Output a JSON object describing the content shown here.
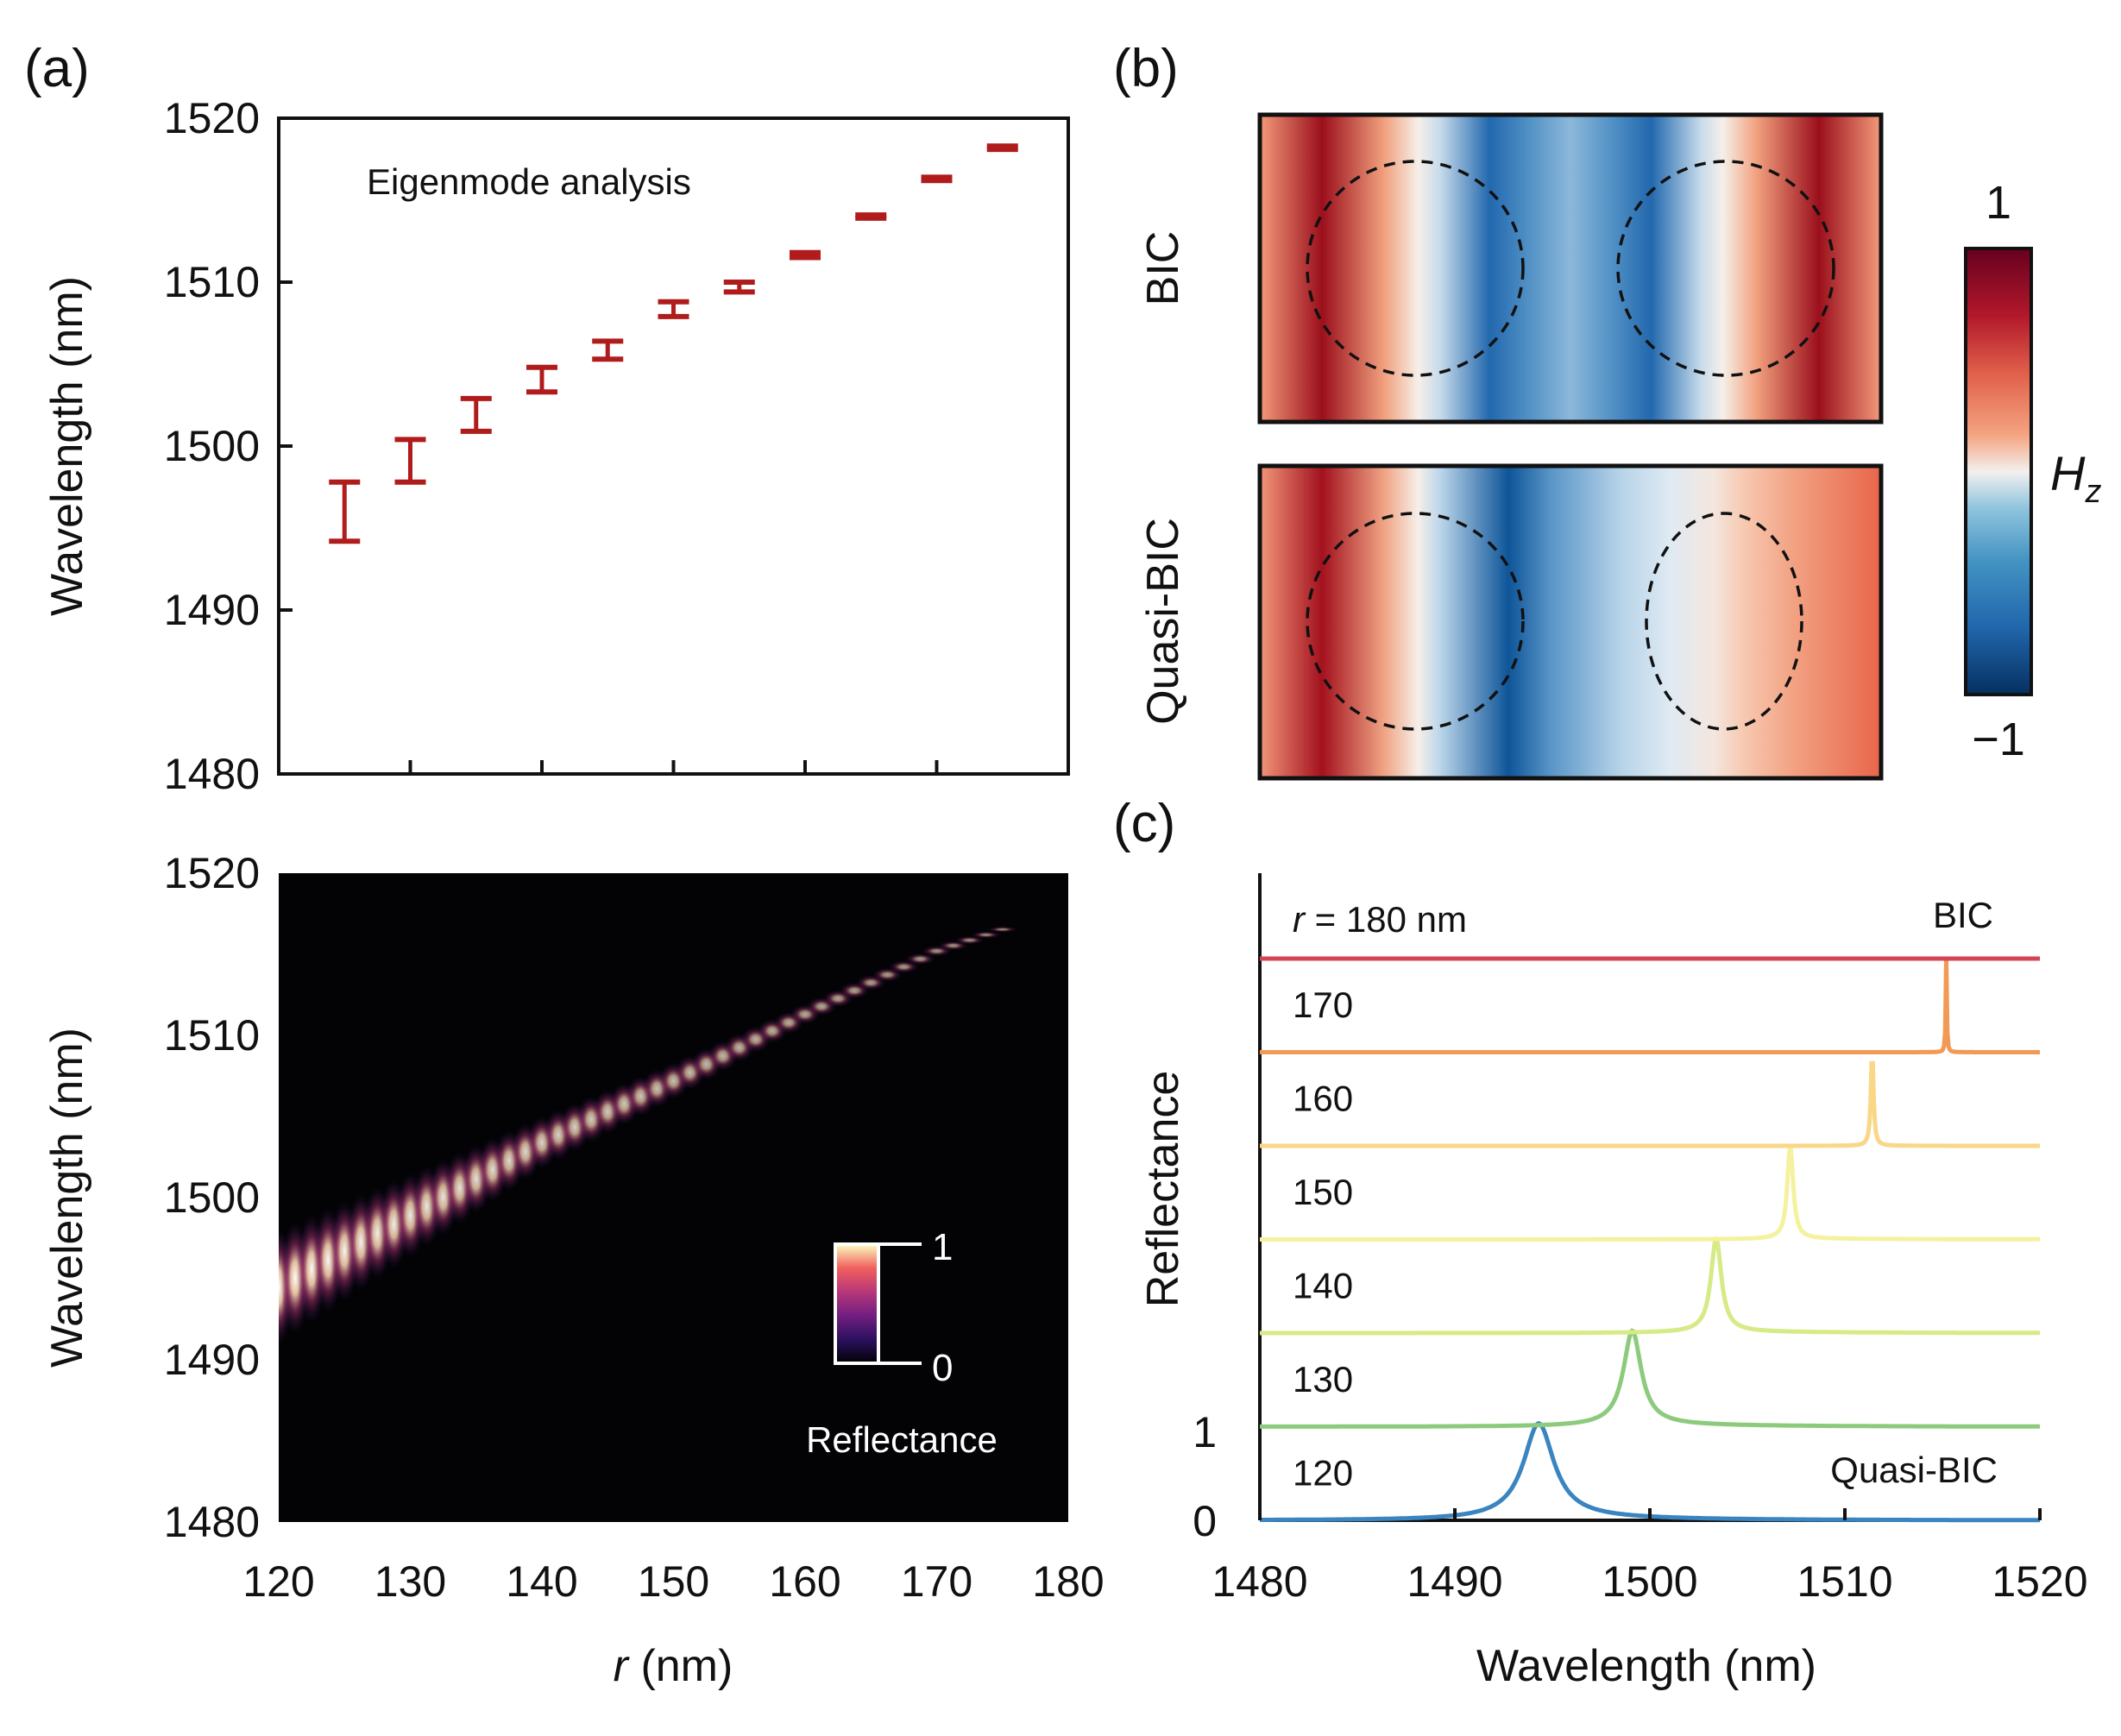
{
  "colors": {
    "errorbar": "#b01c1c",
    "field_red": "#b2182b",
    "field_blue": "#0b4f98",
    "curves": [
      "#3a84c0",
      "#8ccb7c",
      "#d6ea86",
      "#f4f29e",
      "#f9d787",
      "#f29a55",
      "#d44455"
    ]
  },
  "panel_labels": {
    "a": "(a)",
    "b": "(b)",
    "c": "(c)"
  },
  "chart_data": [
    {
      "id": "a_top",
      "type": "errorbar",
      "title": "",
      "annotation": "Eigenmode analysis",
      "xlabel": "",
      "ylabel": "Wavelength (nm)",
      "xlim": [
        120,
        180
      ],
      "ylim": [
        1480,
        1520
      ],
      "yticks": [
        1480,
        1490,
        1500,
        1510,
        1520
      ],
      "yticklabels": [
        "1480",
        "1490",
        "1500",
        "1510",
        "1520"
      ],
      "xticks": [
        130,
        140,
        150,
        160,
        170
      ],
      "points": [
        {
          "r": 125,
          "low": 1494.2,
          "high": 1497.8
        },
        {
          "r": 130,
          "low": 1497.8,
          "high": 1500.4
        },
        {
          "r": 135,
          "low": 1500.9,
          "high": 1502.9
        },
        {
          "r": 140,
          "low": 1503.3,
          "high": 1504.8
        },
        {
          "r": 145,
          "low": 1505.3,
          "high": 1506.4
        },
        {
          "r": 150,
          "low": 1507.9,
          "high": 1508.8
        },
        {
          "r": 155,
          "low": 1509.4,
          "high": 1510.0
        },
        {
          "r": 160,
          "low": 1511.5,
          "high": 1511.8
        },
        {
          "r": 165,
          "low": 1513.9,
          "high": 1514.1
        },
        {
          "r": 170,
          "low": 1516.2,
          "high": 1516.4
        },
        {
          "r": 175,
          "low": 1518.1,
          "high": 1518.3
        }
      ]
    },
    {
      "id": "a_bottom",
      "type": "heatmap",
      "xlabel": "r (nm)",
      "xlabel_italic": "r",
      "xlabel_rest": " (nm)",
      "ylabel": "Wavelength (nm)",
      "xlim": [
        120,
        180
      ],
      "ylim": [
        1480,
        1520
      ],
      "xticks": [
        120,
        130,
        140,
        150,
        160,
        170,
        180
      ],
      "xticklabels": [
        "120",
        "130",
        "140",
        "150",
        "160",
        "170",
        "180"
      ],
      "yticks": [
        1480,
        1490,
        1500,
        1510,
        1520
      ],
      "yticklabels": [
        "1480",
        "1490",
        "1500",
        "1510",
        "1520"
      ],
      "colorbar": {
        "label": "Reflectance",
        "min_label": "0",
        "max_label": "1"
      },
      "resonance_path": [
        [
          120,
          1494.5
        ],
        [
          130,
          1498.9
        ],
        [
          140,
          1503.4
        ],
        [
          150,
          1507.2
        ],
        [
          160,
          1511.3
        ],
        [
          170,
          1515.2
        ],
        [
          176,
          1516.8
        ]
      ],
      "resonance_width_nm": [
        [
          120,
          3.6
        ],
        [
          140,
          1.6
        ],
        [
          160,
          0.6
        ],
        [
          176,
          0.15
        ]
      ]
    },
    {
      "id": "b",
      "type": "field_map",
      "row_labels": [
        "BIC",
        "Quasi-BIC"
      ],
      "colorbar": {
        "label_italic": "H",
        "label_sub": "z",
        "max_label": "1",
        "min_label": "−1"
      }
    },
    {
      "id": "c",
      "type": "line",
      "xlabel": "Wavelength (nm)",
      "ylabel": "Reflectance",
      "xlim": [
        1480,
        1520
      ],
      "xticks": [
        1480,
        1490,
        1500,
        1510,
        1520
      ],
      "xticklabels": [
        "1480",
        "1490",
        "1500",
        "1510",
        "1520"
      ],
      "yticklabels": [
        "0",
        "1"
      ],
      "annotation_left_prefix_italic": "r",
      "annotation_left_rest": " = 180 nm",
      "annotation_top_right": "BIC",
      "annotation_bottom_right": "Quasi-BIC",
      "series": [
        {
          "name": "120",
          "center": 1494.3,
          "gamma": 0.95,
          "bg": 0.04
        },
        {
          "name": "130",
          "center": 1499.1,
          "gamma": 0.55,
          "bg": 0.03
        },
        {
          "name": "140",
          "center": 1503.4,
          "gamma": 0.32,
          "bg": 0.02
        },
        {
          "name": "150",
          "center": 1507.2,
          "gamma": 0.18,
          "bg": 0.01
        },
        {
          "name": "160",
          "center": 1511.4,
          "gamma": 0.08,
          "bg": 0.0
        },
        {
          "name": "170",
          "center": 1515.2,
          "gamma": 0.03,
          "bg": 0.0
        },
        {
          "name": "180",
          "center": null,
          "gamma": 0,
          "bg": 0.0
        }
      ]
    }
  ]
}
